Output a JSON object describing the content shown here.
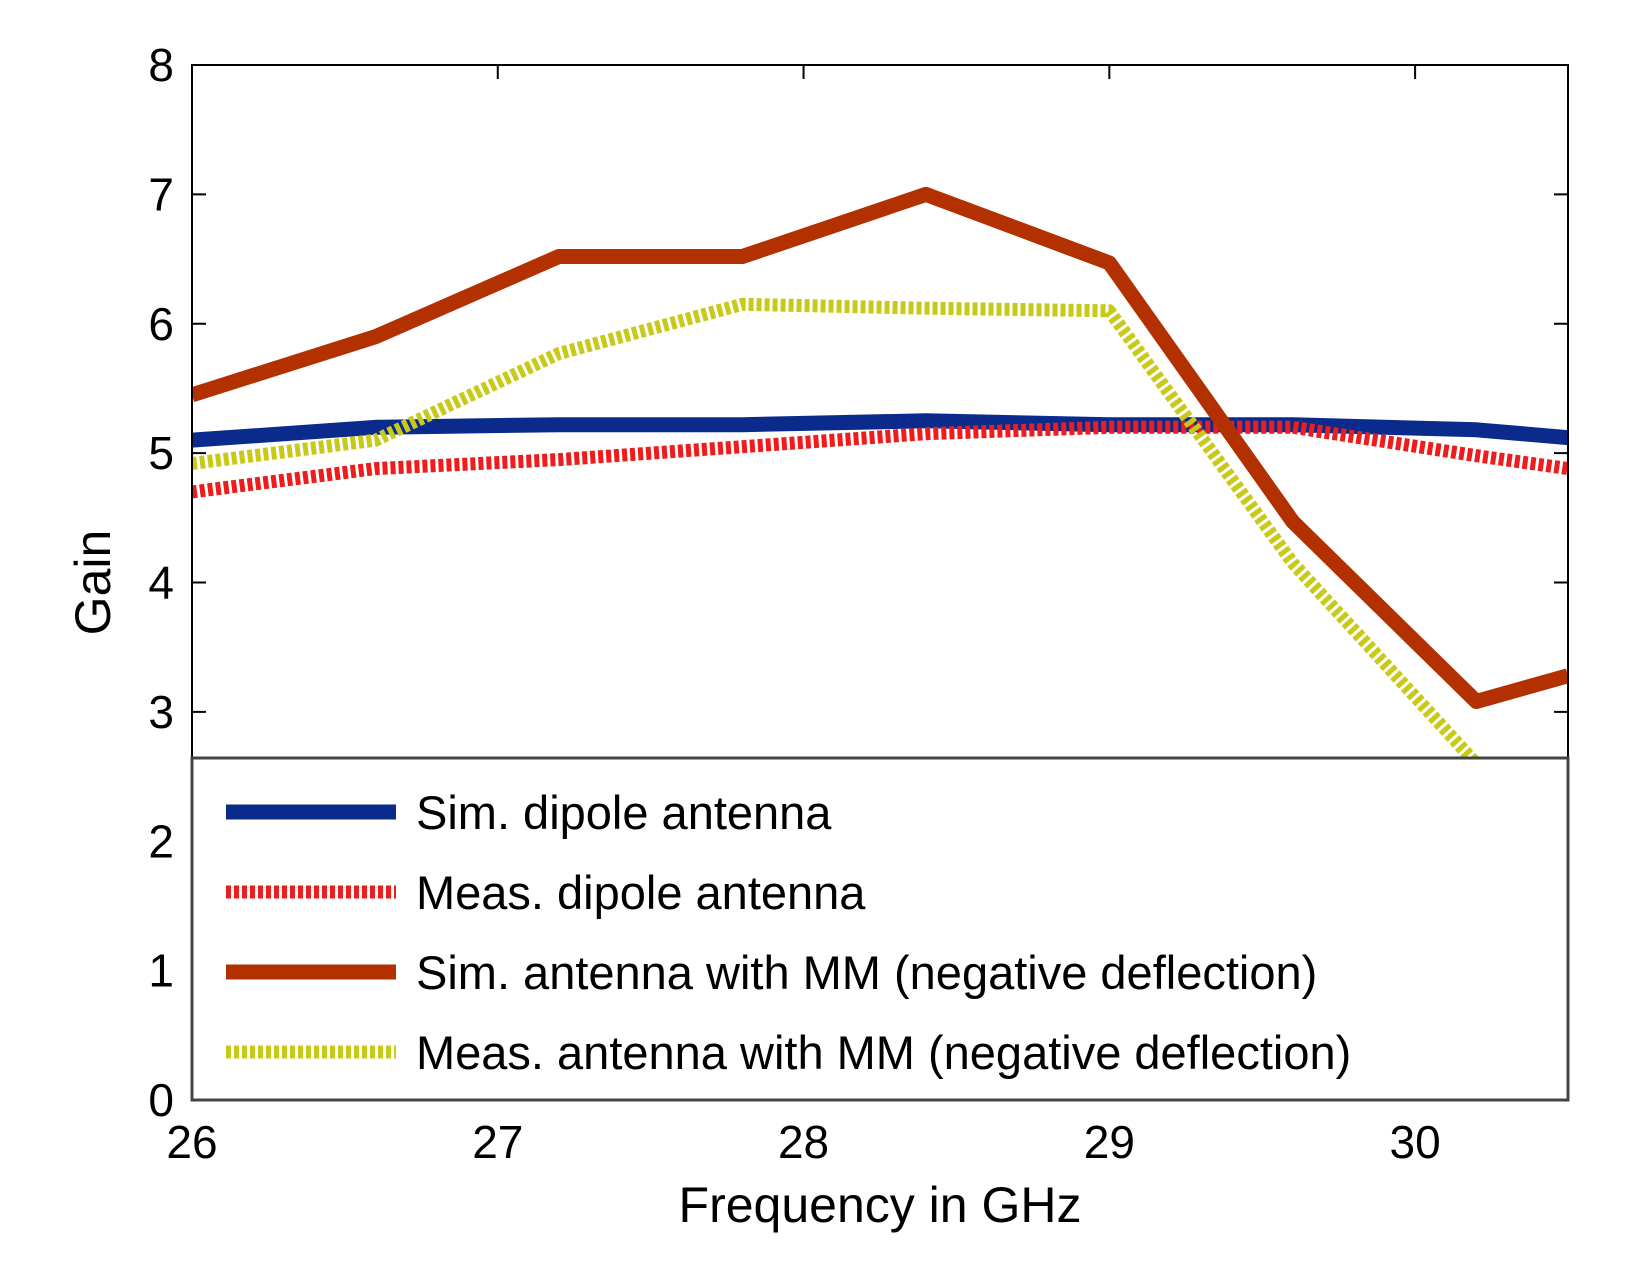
{
  "chart_data": {
    "type": "line",
    "title": "",
    "xlabel": "Frequency in GHz",
    "ylabel": "Gain",
    "xlim": [
      26,
      30.5
    ],
    "ylim": [
      0,
      8
    ],
    "xticks": [
      26,
      27,
      28,
      29,
      30
    ],
    "yticks": [
      0,
      1,
      2,
      3,
      4,
      5,
      6,
      7,
      8
    ],
    "grid": false,
    "legend_position": "bottom-right",
    "series": [
      {
        "name": "Sim. dipole antenna",
        "color": "#0a2a8c",
        "style": "solid",
        "x": [
          26,
          26.6,
          27.2,
          27.8,
          28.4,
          29.0,
          29.6,
          30.2,
          30.5
        ],
        "y": [
          5.1,
          5.2,
          5.22,
          5.22,
          5.25,
          5.22,
          5.22,
          5.18,
          5.12
        ]
      },
      {
        "name": "Meas. dipole antenna",
        "color": "#ee1c1c",
        "style": "dotted",
        "x": [
          26,
          26.6,
          27.2,
          27.8,
          28.4,
          29.0,
          29.6,
          30.2,
          30.5
        ],
        "y": [
          4.7,
          4.88,
          4.95,
          5.05,
          5.15,
          5.2,
          5.2,
          4.98,
          4.88
        ]
      },
      {
        "name": "Sim. antenna with MM (negative deflection)",
        "color": "#b33000",
        "style": "solid",
        "x": [
          26,
          26.6,
          27.2,
          27.8,
          28.4,
          29.0,
          29.6,
          30.2,
          30.5
        ],
        "y": [
          5.45,
          5.9,
          6.52,
          6.52,
          7.0,
          6.47,
          4.47,
          3.08,
          3.28
        ]
      },
      {
        "name": "Meas. antenna with MM (negative deflection)",
        "color": "#c9c91a",
        "style": "dotted",
        "x": [
          26,
          26.6,
          27.2,
          27.8,
          28.4,
          29.0,
          29.6,
          30.2
        ],
        "y": [
          4.92,
          5.1,
          5.77,
          6.15,
          6.12,
          6.1,
          4.15,
          2.6
        ]
      }
    ]
  }
}
